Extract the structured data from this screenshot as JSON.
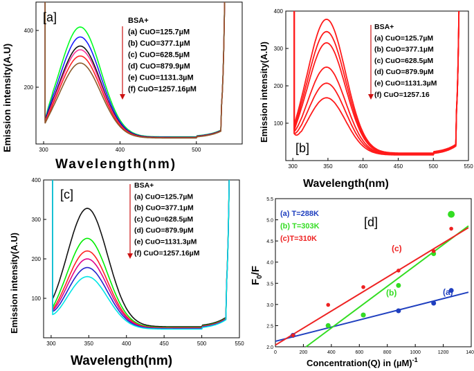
{
  "colors": {
    "a_series": [
      "#00ff22",
      "#1a1aff",
      "#111111",
      "#ff3399",
      "#ff2222",
      "#8b5a2b"
    ],
    "b_series": "#ff1a1a",
    "c_series": [
      "#111111",
      "#00ee00",
      "#ff2222",
      "#e0008a",
      "#2222cc",
      "#00e5e5"
    ],
    "d_a": "#1f3fbf",
    "d_b": "#33dd22",
    "d_c": "#ee2222",
    "arrow": "#cc1111"
  },
  "chart_data": [
    {
      "id": "a",
      "type": "line",
      "panel_label": "[a]",
      "xlabel": "Wavelength(nm)",
      "ylabel": "Emission intensity(A.U)",
      "xlim": [
        290,
        560
      ],
      "ylim": [
        0,
        500
      ],
      "xticks": [
        "300",
        "400",
        "500"
      ],
      "yticks": [
        "200",
        "400"
      ],
      "legend": [
        "BSA+",
        "(a) CuO=125.7µM",
        "(b) CuO=377.1µM",
        "(c) CuO=628.5µM",
        "(d) CuO=879.9µM",
        "(e) CuO=1131.3µM",
        "(f) CuO=1257.16µM"
      ],
      "series": [
        {
          "name": "(a) CuO=125.7µM",
          "peak": 412,
          "start": 118,
          "trough": 25
        },
        {
          "name": "(b) CuO=377.1µM",
          "peak": 377,
          "start": 112,
          "trough": 24
        },
        {
          "name": "(c) CuO=628.5µM",
          "peak": 345,
          "start": 105,
          "trough": 23
        },
        {
          "name": "(d) CuO=879.9µM",
          "peak": 332,
          "start": 100,
          "trough": 22
        },
        {
          "name": "(e) CuO=1131.3µM",
          "peak": 310,
          "start": 95,
          "trough": 22
        },
        {
          "name": "(f) CuO=1257.16µM",
          "peak": 285,
          "start": 90,
          "trough": 21
        }
      ]
    },
    {
      "id": "b",
      "type": "line",
      "panel_label": "[b]",
      "xlabel": "Wavelength(nm)",
      "ylabel": "Emission intensity(A.U)",
      "xlim": [
        290,
        550
      ],
      "ylim": [
        0,
        400
      ],
      "xticks": [
        "300",
        "350",
        "400",
        "450",
        "500",
        "550"
      ],
      "yticks": [
        "100",
        "200",
        "300",
        "400"
      ],
      "legend": [
        "BSA+",
        "(a) CuO=125.7µM",
        "(b) CuO=377.1µM",
        "(c) CuO=628.5µM",
        "(d) CuO=879.9µM",
        "(e) CuO=1131.3µM",
        "(f) CuO=1257.16"
      ],
      "series": [
        {
          "name": "(a) CuO=125.7µM",
          "peak": 378,
          "start": 115,
          "trough": 20
        },
        {
          "name": "(b) CuO=377.1µM",
          "peak": 345,
          "start": 105,
          "trough": 19
        },
        {
          "name": "(c) CuO=628.5µM",
          "peak": 315,
          "start": 98,
          "trough": 18
        },
        {
          "name": "(d) CuO=879.9µM",
          "peak": 250,
          "start": 85,
          "trough": 17
        },
        {
          "name": "(e) CuO=1131.3µM",
          "peak": 207,
          "start": 75,
          "trough": 16
        },
        {
          "name": "(f) CuO=1257.16",
          "peak": 168,
          "start": 68,
          "trough": 15
        }
      ]
    },
    {
      "id": "c",
      "type": "line",
      "panel_label": "[c]",
      "xlabel": "Wavelength(nm)",
      "ylabel": "Emission intensity(A.U)",
      "xlim": [
        290,
        550
      ],
      "ylim": [
        0,
        400
      ],
      "xticks": [
        "300",
        "350",
        "400",
        "450",
        "500",
        "550"
      ],
      "yticks": [
        "100",
        "200",
        "300",
        "400"
      ],
      "legend": [
        "BSA+",
        "(a) CuO=125.7µM",
        "(b) CuO=377.1µM",
        "(c) CuO=628.5µM",
        "(d) CuO=879.9µM",
        "(e) CuO=1131.3µM",
        "(f) CuO=1257.16µM"
      ],
      "series": [
        {
          "name": "(a) CuO=125.7µM",
          "peak": 328,
          "start": 112,
          "trough": 28
        },
        {
          "name": "(b) CuO=377.1µM",
          "peak": 252,
          "start": 88,
          "trough": 26
        },
        {
          "name": "(c) CuO=628.5µM",
          "peak": 220,
          "start": 80,
          "trough": 25
        },
        {
          "name": "(d) CuO=879.9µM",
          "peak": 200,
          "start": 75,
          "trough": 24
        },
        {
          "name": "(e) CuO=1131.3µM",
          "peak": 178,
          "start": 70,
          "trough": 23
        },
        {
          "name": "(f) CuO=1257.16µM",
          "peak": 155,
          "start": 62,
          "trough": 22
        }
      ]
    },
    {
      "id": "d",
      "type": "scatter",
      "panel_label": "[d]",
      "title": "",
      "xlabel": "Concentration(Q) in (µM)",
      "xlabel_sup": "-1",
      "ylabel": "F",
      "ylabel_sub": "0",
      "ylabel_tail": "/F",
      "xlim": [
        0,
        1400
      ],
      "ylim": [
        2.0,
        5.5
      ],
      "xticks": [
        "0",
        "200",
        "400",
        "600",
        "800",
        "1000",
        "1200",
        "1400"
      ],
      "yticks": [
        "2.0",
        "2.5",
        "3.0",
        "3.5",
        "4.0",
        "4.5",
        "5.0",
        "5.5"
      ],
      "legend": [
        "(a) T=288K",
        "(b) T=303K",
        "(c)T=310K"
      ],
      "curve_labels": [
        "(a)",
        "(b)",
        "(c)"
      ],
      "series": [
        {
          "name": "(a) T=288K",
          "x": [
            125.7,
            377.1,
            628.5,
            879.9,
            1131.3,
            1257.16
          ],
          "y": [
            2.27,
            2.5,
            2.75,
            2.85,
            3.03,
            3.33
          ],
          "fit": [
            2.13,
            0.00084
          ]
        },
        {
          "name": "(b) T=303K",
          "x": [
            377.1,
            628.5,
            879.9,
            1131.3,
            1257.16
          ],
          "y": [
            2.5,
            2.75,
            3.45,
            4.2,
            5.13
          ],
          "fit": [
            1.46,
            0.00246
          ]
        },
        {
          "name": "(c)T=310K",
          "x": [
            125.7,
            377.1,
            628.5,
            879.9,
            1131.3,
            1257.16
          ],
          "y": [
            2.27,
            2.99,
            3.41,
            3.8,
            4.26,
            4.79
          ],
          "fit": [
            2.04,
            0.00201
          ]
        }
      ]
    }
  ]
}
